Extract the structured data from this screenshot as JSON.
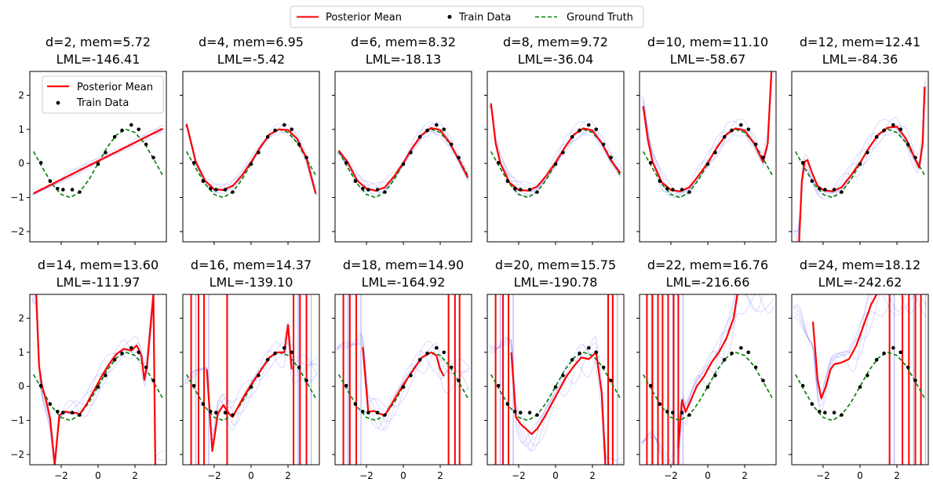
{
  "figure": {
    "legend_top": {
      "entries": [
        {
          "label": "Posterior Mean",
          "style": "line",
          "color": "#ff0000"
        },
        {
          "label": "Train Data",
          "style": "point",
          "color": "#000000"
        },
        {
          "label": "Ground Truth",
          "style": "dashed",
          "color": "#008000"
        }
      ]
    }
  },
  "chart_data": {
    "type": "line",
    "grid": false,
    "xlim": [
      -3.7,
      3.7
    ],
    "ylim": [
      -2.3,
      2.7
    ],
    "x_ticks": [
      -2,
      0,
      2
    ],
    "x_tick_labels": [
      "−2",
      "0",
      "2"
    ],
    "y_ticks": [
      -2,
      -1,
      0,
      1,
      2
    ],
    "y_tick_labels": [
      "−2",
      "−1",
      "0",
      "1",
      "2"
    ],
    "colors": {
      "mean": "#ff0000",
      "samples": "#6666ff",
      "truth": "#008000",
      "train": "#000000"
    },
    "ground_truth": {
      "name": "Ground Truth",
      "x": [
        -3.5,
        -3.0,
        -2.5,
        -2.0,
        -1.5,
        -1.0,
        -0.5,
        0.0,
        0.5,
        1.0,
        1.5,
        2.0,
        2.5,
        3.0,
        3.5
      ],
      "y": [
        0.35,
        -0.14,
        -0.6,
        -0.91,
        -1.0,
        -0.84,
        -0.48,
        0.0,
        0.48,
        0.84,
        1.0,
        0.91,
        0.6,
        0.14,
        -0.35
      ]
    },
    "train_data": {
      "name": "Train Data",
      "x": [
        -3.1,
        -2.6,
        -2.2,
        -1.9,
        -1.4,
        -1.0,
        0.0,
        0.4,
        0.9,
        1.3,
        1.8,
        2.2,
        2.6,
        3.0
      ],
      "y": [
        0.02,
        -0.52,
        -0.74,
        -0.77,
        -0.77,
        -0.84,
        -0.02,
        0.32,
        0.78,
        0.97,
        1.13,
        1.0,
        0.56,
        0.17
      ]
    },
    "panels": [
      {
        "title_line1": "d=2, mem=5.72",
        "title_line2": "LML=-146.41",
        "has_legend": true,
        "mean": {
          "x": [
            -3.5,
            3.5
          ],
          "y": [
            -0.88,
            1.02
          ]
        },
        "verticals": []
      },
      {
        "title_line1": "d=4, mem=6.95",
        "title_line2": "LML=-5.42",
        "has_legend": false,
        "mean": {
          "x": [
            -3.5,
            -3.0,
            -2.5,
            -2.0,
            -1.5,
            -1.0,
            -0.5,
            0.0,
            0.5,
            1.0,
            1.5,
            2.0,
            2.5,
            3.0,
            3.5
          ],
          "y": [
            1.16,
            0.05,
            -0.5,
            -0.76,
            -0.78,
            -0.66,
            -0.36,
            0.04,
            0.48,
            0.85,
            1.0,
            0.98,
            0.72,
            0.15,
            -0.88
          ]
        },
        "verticals": []
      },
      {
        "title_line1": "d=6, mem=8.32",
        "title_line2": "LML=-18.13",
        "has_legend": false,
        "mean": {
          "x": [
            -3.5,
            -3.0,
            -2.5,
            -2.0,
            -1.5,
            -1.0,
            -0.5,
            0.0,
            0.5,
            1.0,
            1.5,
            2.0,
            2.5,
            3.0,
            3.5
          ],
          "y": [
            0.38,
            0.02,
            -0.5,
            -0.74,
            -0.8,
            -0.7,
            -0.38,
            0.02,
            0.47,
            0.84,
            1.04,
            0.98,
            0.62,
            0.12,
            -0.42
          ]
        },
        "verticals": []
      },
      {
        "title_line1": "d=8, mem=9.72",
        "title_line2": "LML=-36.04",
        "has_legend": false,
        "mean": {
          "x": [
            -3.5,
            -3.25,
            -3.0,
            -2.5,
            -2.0,
            -1.5,
            -1.0,
            -0.5,
            0.0,
            0.5,
            1.0,
            1.5,
            2.0,
            2.5,
            3.0,
            3.5
          ],
          "y": [
            1.76,
            0.6,
            0.02,
            -0.56,
            -0.78,
            -0.8,
            -0.68,
            -0.36,
            0.03,
            0.47,
            0.85,
            1.03,
            0.97,
            0.6,
            0.1,
            -0.28
          ]
        },
        "verticals": []
      },
      {
        "title_line1": "d=10, mem=11.10",
        "title_line2": "LML=-58.67",
        "has_legend": false,
        "mean": {
          "x": [
            -3.5,
            -3.25,
            -3.0,
            -2.5,
            -2.0,
            -1.5,
            -1.0,
            -0.5,
            0.0,
            0.5,
            1.0,
            1.5,
            2.0,
            2.5,
            3.0,
            3.25,
            3.45
          ],
          "y": [
            1.68,
            0.7,
            0.05,
            -0.55,
            -0.78,
            -0.82,
            -0.7,
            -0.36,
            0.02,
            0.47,
            0.85,
            1.03,
            0.97,
            0.6,
            0.05,
            0.6,
            2.7
          ]
        },
        "verticals": []
      },
      {
        "title_line1": "d=12, mem=12.41",
        "title_line2": "LML=-84.36",
        "has_legend": false,
        "mean": {
          "x": [
            -3.3,
            -3.15,
            -3.0,
            -2.85,
            -2.6,
            -2.3,
            -2.0,
            -1.5,
            -1.0,
            -0.5,
            0.0,
            0.5,
            1.0,
            1.5,
            2.0,
            2.5,
            3.0,
            3.2,
            3.4,
            3.5
          ],
          "y": [
            -2.3,
            -0.5,
            0.05,
            0.1,
            -0.28,
            -0.66,
            -0.78,
            -0.82,
            -0.7,
            -0.36,
            0.02,
            0.47,
            0.85,
            1.05,
            1.08,
            0.72,
            0.12,
            -0.12,
            0.6,
            2.25
          ]
        },
        "verticals": []
      },
      {
        "title_line1": "d=14, mem=13.60",
        "title_line2": "LML=-111.97",
        "has_legend": false,
        "mean": {
          "x": [
            -3.35,
            -3.2,
            -3.05,
            -2.8,
            -2.6,
            -2.35,
            -2.1,
            -1.8,
            -1.5,
            -1.2,
            -1.0,
            -0.6,
            -0.2,
            0.2,
            0.6,
            1.0,
            1.4,
            1.8,
            2.1,
            2.35,
            2.5,
            2.65,
            2.8,
            3.0,
            3.1
          ],
          "y": [
            2.7,
            0.6,
            0.05,
            -0.45,
            -0.95,
            -2.3,
            -0.85,
            -0.74,
            -0.77,
            -0.78,
            -0.82,
            -0.5,
            -0.1,
            0.3,
            0.65,
            0.95,
            1.1,
            1.05,
            1.2,
            0.9,
            0.2,
            0.6,
            1.5,
            2.7,
            -2.3
          ]
        },
        "verticals": []
      },
      {
        "title_line1": "d=16, mem=14.37",
        "title_line2": "LML=-139.10",
        "has_legend": false,
        "mean": {
          "x": [
            -2.4,
            -2.1,
            -1.8,
            -1.5,
            -1.2,
            -1.0,
            -0.5,
            0.0,
            0.5,
            1.0,
            1.4,
            1.8,
            2.0,
            2.2
          ],
          "y": [
            0.5,
            -1.9,
            -0.8,
            -0.55,
            -0.8,
            -0.9,
            -0.4,
            0.05,
            0.45,
            0.85,
            1.0,
            1.0,
            1.8,
            0.5
          ]
        },
        "verticals": [
          -3.25,
          -2.85,
          -2.55,
          -1.3,
          2.3,
          2.65,
          3.0
        ]
      },
      {
        "title_line1": "d=18, mem=14.90",
        "title_line2": "LML=-164.92",
        "has_legend": false,
        "mean": {
          "x": [
            -2.2,
            -1.9,
            -1.6,
            -1.3,
            -1.0,
            -0.5,
            0.0,
            0.5,
            1.0,
            1.5,
            1.8,
            2.0,
            2.2
          ],
          "y": [
            1.15,
            -0.75,
            -0.72,
            -0.8,
            -0.85,
            -0.4,
            0.05,
            0.45,
            0.85,
            1.0,
            0.9,
            0.5,
            0.3
          ]
        },
        "verticals": [
          -3.25,
          -2.9,
          -2.55,
          2.45,
          2.8,
          3.05
        ]
      },
      {
        "title_line1": "d=20, mem=15.75",
        "title_line2": "LML=-190.78",
        "has_legend": false,
        "mean": {
          "x": [
            -2.4,
            -2.15,
            -1.9,
            -1.6,
            -1.3,
            -1.0,
            -0.6,
            -0.2,
            0.2,
            0.6,
            1.0,
            1.4,
            1.8,
            2.2,
            2.5,
            2.7
          ],
          "y": [
            1.0,
            -0.9,
            -1.1,
            -1.25,
            -1.4,
            -1.25,
            -0.9,
            -0.5,
            -0.1,
            0.3,
            0.6,
            0.85,
            0.8,
            1.0,
            -0.2,
            -2.3
          ]
        },
        "verticals": [
          -3.25,
          -2.85,
          -2.55,
          2.85,
          3.1
        ]
      },
      {
        "title_line1": "d=22, mem=16.76",
        "title_line2": "LML=-216.66",
        "has_legend": false,
        "mean": {
          "x": [
            -1.6,
            -1.4,
            -1.2,
            -1.0,
            -0.6,
            -0.2,
            0.2,
            0.6,
            1.0,
            1.4,
            1.6
          ],
          "y": [
            -1.8,
            -0.4,
            -0.75,
            -0.5,
            0.0,
            0.3,
            0.7,
            1.0,
            1.4,
            2.0,
            2.7
          ]
        },
        "verticals": [
          -3.3,
          -3.0,
          -2.7,
          -2.45,
          -2.15,
          -1.85,
          -1.6
        ]
      },
      {
        "title_line1": "d=24, mem=18.12",
        "title_line2": "LML=-242.62",
        "has_legend": false,
        "mean": {
          "x": [
            -2.55,
            -2.3,
            -2.1,
            -1.85,
            -1.6,
            -1.4,
            -1.0,
            -0.6,
            -0.2,
            0.2,
            0.6,
            0.9
          ],
          "y": [
            1.9,
            0.2,
            -0.35,
            0.0,
            0.5,
            0.65,
            0.7,
            0.8,
            1.2,
            1.8,
            2.4,
            2.7
          ]
        },
        "verticals": [
          1.6,
          2.3,
          2.65,
          3.0,
          3.3
        ]
      }
    ]
  }
}
